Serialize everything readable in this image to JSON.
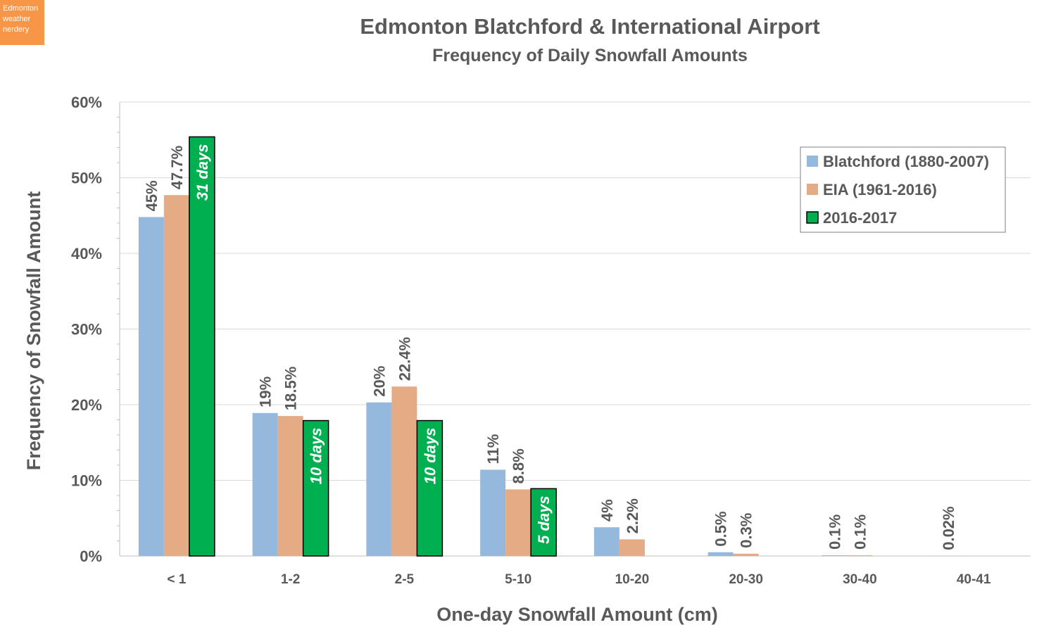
{
  "logo": {
    "lines": [
      "Edmonton",
      "weather",
      "nerdery"
    ],
    "color": "#f79646"
  },
  "chart_data": {
    "type": "bar",
    "title": "Edmonton Blatchford & International Airport",
    "subtitle": "Frequency of Daily Snowfall Amounts",
    "xlabel": "One-day Snowfall Amount (cm)",
    "ylabel": "Frequency of Snowfall Amount",
    "ylim": [
      0,
      60
    ],
    "yticks": [
      "0%",
      "10%",
      "20%",
      "30%",
      "40%",
      "50%",
      "60%"
    ],
    "grid": true,
    "legend_position": "top-right",
    "categories": [
      "< 1",
      "1-2",
      "2-5",
      "5-10",
      "10-20",
      "20-30",
      "30-40",
      "40-41"
    ],
    "series": [
      {
        "name": "Blatchford (1880-2007)",
        "color": "#95b9dc",
        "values": [
          44.8,
          18.9,
          20.3,
          11.4,
          3.8,
          0.5,
          0.1,
          0.02
        ],
        "labels": [
          "45%",
          "19%",
          "20%",
          "11%",
          "4%",
          "0.5%",
          "0.1%",
          "0.02%"
        ]
      },
      {
        "name": "EIA (1961-2016)",
        "color": "#e4ab84",
        "values": [
          47.7,
          18.5,
          22.4,
          8.8,
          2.2,
          0.3,
          0.1,
          0
        ],
        "labels": [
          "47.7%",
          "18.5%",
          "22.4%",
          "8.8%",
          "2.2%",
          "0.3%",
          "0.1%",
          ""
        ]
      },
      {
        "name": "2016-2017",
        "color": "#00b050",
        "values": [
          55.4,
          17.9,
          17.9,
          8.9,
          0,
          0,
          0,
          0
        ],
        "labels": [
          "31 days",
          "10 days",
          "10 days",
          "5 days",
          "",
          "",
          "",
          ""
        ]
      }
    ]
  }
}
